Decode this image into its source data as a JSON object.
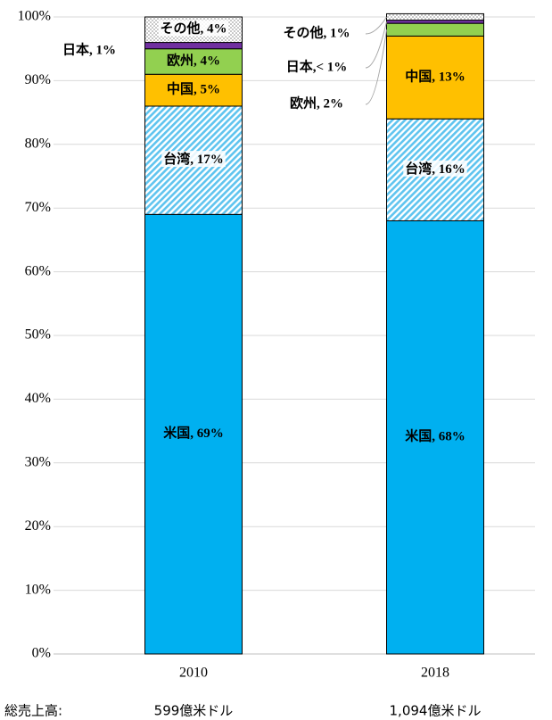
{
  "chart_data": {
    "type": "stacked_bar",
    "categories": [
      "2010",
      "2018"
    ],
    "series": [
      {
        "name": "米国",
        "color": "#00b0f0",
        "pattern": "solid",
        "values": [
          69,
          68
        ],
        "value_labels": [
          "米国, 69%",
          "米国, 68%"
        ]
      },
      {
        "name": "台湾",
        "color": "#9dd9f3",
        "pattern": "hatch",
        "values": [
          17,
          16
        ],
        "value_labels": [
          "台湾, 17%",
          "台湾, 16%"
        ]
      },
      {
        "name": "中国",
        "color": "#ffc000",
        "pattern": "solid",
        "values": [
          5,
          13
        ],
        "value_labels": [
          "中国, 5%",
          "中国, 13%"
        ]
      },
      {
        "name": "欧州",
        "color": "#92d050",
        "pattern": "solid",
        "values": [
          4,
          2
        ],
        "value_labels": [
          "欧州, 4%",
          "欧州, 2%"
        ]
      },
      {
        "name": "日本",
        "color": "#7030a0",
        "pattern": "solid",
        "values": [
          1,
          0.5
        ],
        "value_labels": [
          "日本, 1%",
          "日本,< 1%"
        ]
      },
      {
        "name": "その他",
        "color": "#bfbfbf",
        "pattern": "dots",
        "values": [
          4,
          1
        ],
        "value_labels": [
          "その他, 4%",
          "その他, 1%"
        ]
      }
    ],
    "ylim": [
      0,
      100
    ],
    "yticks": [
      {
        "value": 0,
        "label": "0%"
      },
      {
        "value": 10,
        "label": "10%"
      },
      {
        "value": 20,
        "label": "20%"
      },
      {
        "value": 30,
        "label": "30%"
      },
      {
        "value": 40,
        "label": "40%"
      },
      {
        "value": 50,
        "label": "50%"
      },
      {
        "value": 60,
        "label": "60%"
      },
      {
        "value": 70,
        "label": "70%"
      },
      {
        "value": 80,
        "label": "80%"
      },
      {
        "value": 90,
        "label": "90%"
      },
      {
        "value": 100,
        "label": "100%"
      }
    ],
    "grid": true,
    "totals_label": "総売上高:",
    "totals": [
      "599億米ドル",
      "1,094億米ドル"
    ]
  }
}
